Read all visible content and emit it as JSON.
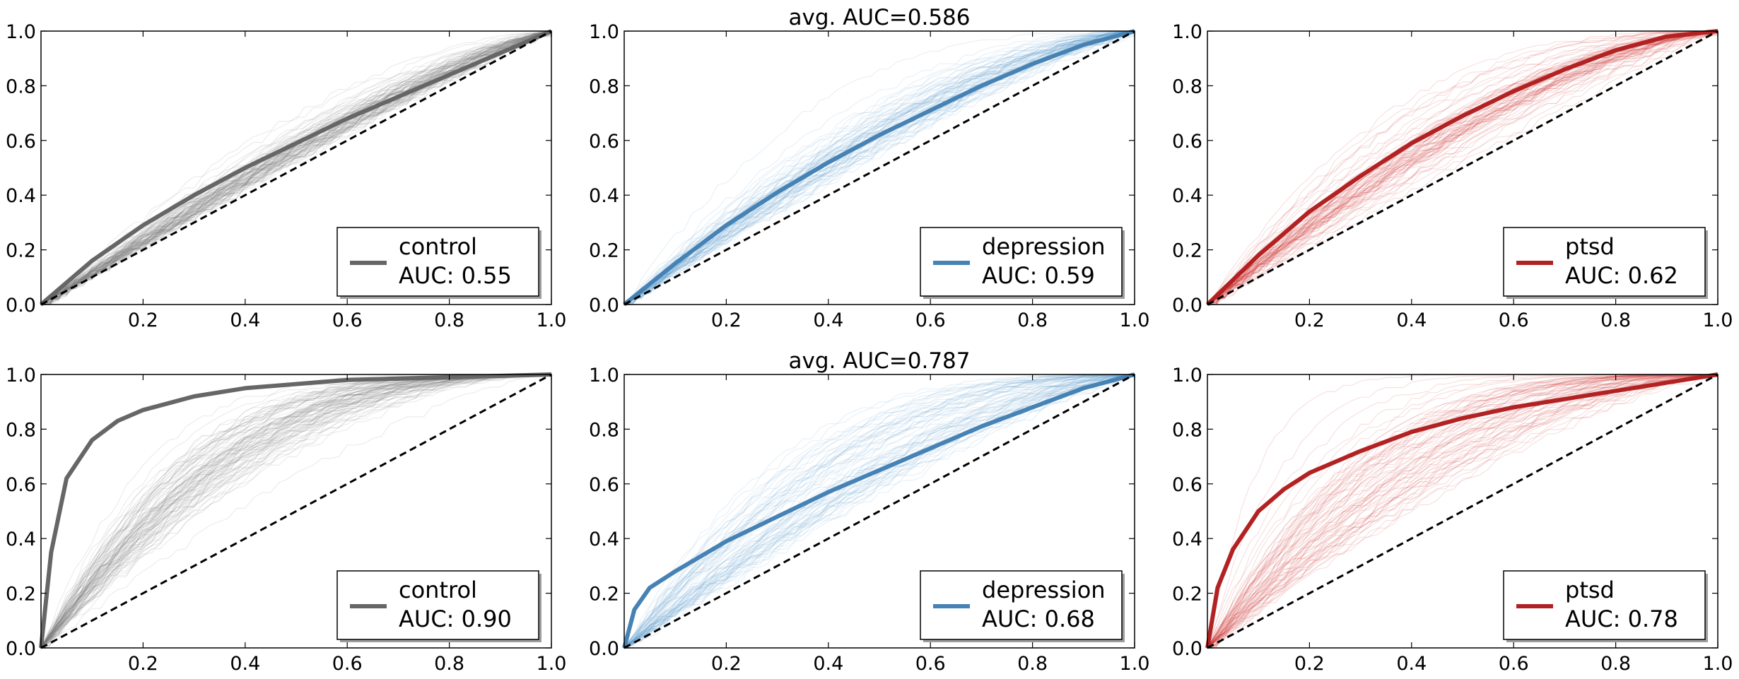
{
  "colors": {
    "control": "#666666",
    "depression": "#4682b4",
    "ptsd": "#b22222",
    "control_trace": "#777777",
    "depression_trace": "#5b9bd0",
    "ptsd_trace": "#cc2a2a",
    "diagonal": "#000000"
  },
  "row_titles": [
    {
      "text": "avg. AUC=0.586"
    },
    {
      "text": "avg. AUC=0.787"
    }
  ],
  "chart_data": [
    {
      "type": "line",
      "row": 0,
      "col": 0,
      "group": "control",
      "xlim": [
        0,
        1
      ],
      "ylim": [
        0,
        1
      ],
      "xticks": [
        "0.2",
        "0.4",
        "0.6",
        "0.8",
        "1.0"
      ],
      "yticks": [
        "0.0",
        "0.2",
        "0.4",
        "0.6",
        "0.8",
        "1.0"
      ],
      "grid": false,
      "legend_position": "lower-right",
      "legend": [
        "control",
        "AUC: 0.55"
      ],
      "auc": 0.55,
      "k": 0.25,
      "spread": 0.45,
      "n_traces": 90,
      "series": [
        {
          "name": "control",
          "style": "mean",
          "x": [
            0,
            0.1,
            0.2,
            0.3,
            0.4,
            0.5,
            0.6,
            0.7,
            0.8,
            0.9,
            1.0
          ],
          "y": [
            0,
            0.16,
            0.29,
            0.4,
            0.5,
            0.59,
            0.68,
            0.76,
            0.84,
            0.92,
            1.0
          ]
        },
        {
          "name": "chance",
          "style": "diagonal",
          "x": [
            0,
            1
          ],
          "y": [
            0,
            1
          ]
        }
      ]
    },
    {
      "type": "line",
      "row": 0,
      "col": 1,
      "group": "depression",
      "xlim": [
        0,
        1
      ],
      "ylim": [
        0,
        1
      ],
      "xticks": [
        "0.2",
        "0.4",
        "0.6",
        "0.8",
        "1.0"
      ],
      "yticks": [
        "0.0",
        "0.2",
        "0.4",
        "0.6",
        "0.8",
        "1.0"
      ],
      "grid": false,
      "legend_position": "lower-right",
      "legend": [
        "depression",
        "AUC: 0.59"
      ],
      "auc": 0.59,
      "k": 0.45,
      "spread": 0.55,
      "n_traces": 70,
      "series": [
        {
          "name": "depression",
          "style": "mean",
          "x": [
            0,
            0.1,
            0.2,
            0.3,
            0.4,
            0.5,
            0.6,
            0.7,
            0.8,
            0.9,
            1.0
          ],
          "y": [
            0,
            0.15,
            0.29,
            0.41,
            0.52,
            0.62,
            0.71,
            0.8,
            0.88,
            0.95,
            1.0
          ]
        },
        {
          "name": "chance",
          "style": "diagonal",
          "x": [
            0,
            1
          ],
          "y": [
            0,
            1
          ]
        }
      ]
    },
    {
      "type": "line",
      "row": 0,
      "col": 2,
      "group": "ptsd",
      "xlim": [
        0,
        1
      ],
      "ylim": [
        0,
        1
      ],
      "xticks": [
        "0.2",
        "0.4",
        "0.6",
        "0.8",
        "1.0"
      ],
      "yticks": [
        "0.0",
        "0.2",
        "0.4",
        "0.6",
        "0.8",
        "1.0"
      ],
      "grid": false,
      "legend_position": "lower-right",
      "legend": [
        "ptsd",
        "AUC: 0.62"
      ],
      "auc": 0.62,
      "k": 0.6,
      "spread": 0.55,
      "n_traces": 70,
      "series": [
        {
          "name": "ptsd",
          "style": "mean",
          "x": [
            0,
            0.1,
            0.2,
            0.3,
            0.4,
            0.5,
            0.6,
            0.7,
            0.8,
            0.9,
            1.0
          ],
          "y": [
            0,
            0.18,
            0.34,
            0.47,
            0.59,
            0.69,
            0.78,
            0.86,
            0.93,
            0.98,
            1.0
          ]
        },
        {
          "name": "chance",
          "style": "diagonal",
          "x": [
            0,
            1
          ],
          "y": [
            0,
            1
          ]
        }
      ]
    },
    {
      "type": "line",
      "row": 1,
      "col": 0,
      "group": "control",
      "xlim": [
        0,
        1
      ],
      "ylim": [
        0,
        1
      ],
      "xticks": [
        "0.2",
        "0.4",
        "0.6",
        "0.8",
        "1.0"
      ],
      "yticks": [
        "0.0",
        "0.2",
        "0.4",
        "0.6",
        "0.8",
        "1.0"
      ],
      "grid": false,
      "legend_position": "lower-right",
      "legend": [
        "control",
        "AUC: 0.90"
      ],
      "auc": 0.9,
      "k": 1.7,
      "spread": 0.35,
      "n_traces": 90,
      "series": [
        {
          "name": "control",
          "style": "mean",
          "x": [
            0,
            0.02,
            0.05,
            0.1,
            0.15,
            0.2,
            0.3,
            0.4,
            0.6,
            0.8,
            1.0
          ],
          "y": [
            0,
            0.35,
            0.62,
            0.76,
            0.83,
            0.87,
            0.92,
            0.95,
            0.98,
            0.99,
            1.0
          ]
        },
        {
          "name": "chance",
          "style": "diagonal",
          "x": [
            0,
            1
          ],
          "y": [
            0,
            1
          ]
        }
      ]
    },
    {
      "type": "line",
      "row": 1,
      "col": 1,
      "group": "depression",
      "xlim": [
        0,
        1
      ],
      "ylim": [
        0,
        1
      ],
      "xticks": [
        "0.2",
        "0.4",
        "0.6",
        "0.8",
        "1.0"
      ],
      "yticks": [
        "0.0",
        "0.2",
        "0.4",
        "0.6",
        "0.8",
        "1.0"
      ],
      "grid": false,
      "legend_position": "lower-right",
      "legend": [
        "depression",
        "AUC: 0.68"
      ],
      "auc": 0.68,
      "k": 0.8,
      "spread": 0.6,
      "n_traces": 70,
      "series": [
        {
          "name": "depression",
          "style": "mean",
          "x": [
            0,
            0.02,
            0.05,
            0.1,
            0.2,
            0.3,
            0.4,
            0.5,
            0.6,
            0.7,
            0.8,
            0.9,
            1.0
          ],
          "y": [
            0,
            0.14,
            0.22,
            0.28,
            0.39,
            0.48,
            0.57,
            0.65,
            0.73,
            0.81,
            0.88,
            0.95,
            1.0
          ]
        },
        {
          "name": "chance",
          "style": "diagonal",
          "x": [
            0,
            1
          ],
          "y": [
            0,
            1
          ]
        }
      ]
    },
    {
      "type": "line",
      "row": 1,
      "col": 2,
      "group": "ptsd",
      "xlim": [
        0,
        1
      ],
      "ylim": [
        0,
        1
      ],
      "xticks": [
        "0.2",
        "0.4",
        "0.6",
        "0.8",
        "1.0"
      ],
      "yticks": [
        "0.0",
        "0.2",
        "0.4",
        "0.6",
        "0.8",
        "1.0"
      ],
      "grid": false,
      "legend_position": "lower-right",
      "legend": [
        "ptsd",
        "AUC: 0.78"
      ],
      "auc": 0.78,
      "k": 1.2,
      "spread": 0.6,
      "n_traces": 70,
      "series": [
        {
          "name": "ptsd",
          "style": "mean",
          "x": [
            0,
            0.02,
            0.05,
            0.1,
            0.15,
            0.2,
            0.3,
            0.4,
            0.5,
            0.6,
            0.7,
            0.8,
            0.9,
            1.0
          ],
          "y": [
            0,
            0.22,
            0.36,
            0.5,
            0.58,
            0.64,
            0.72,
            0.79,
            0.84,
            0.88,
            0.91,
            0.94,
            0.97,
            1.0
          ]
        },
        {
          "name": "chance",
          "style": "diagonal",
          "x": [
            0,
            1
          ],
          "y": [
            0,
            1
          ]
        }
      ]
    }
  ]
}
